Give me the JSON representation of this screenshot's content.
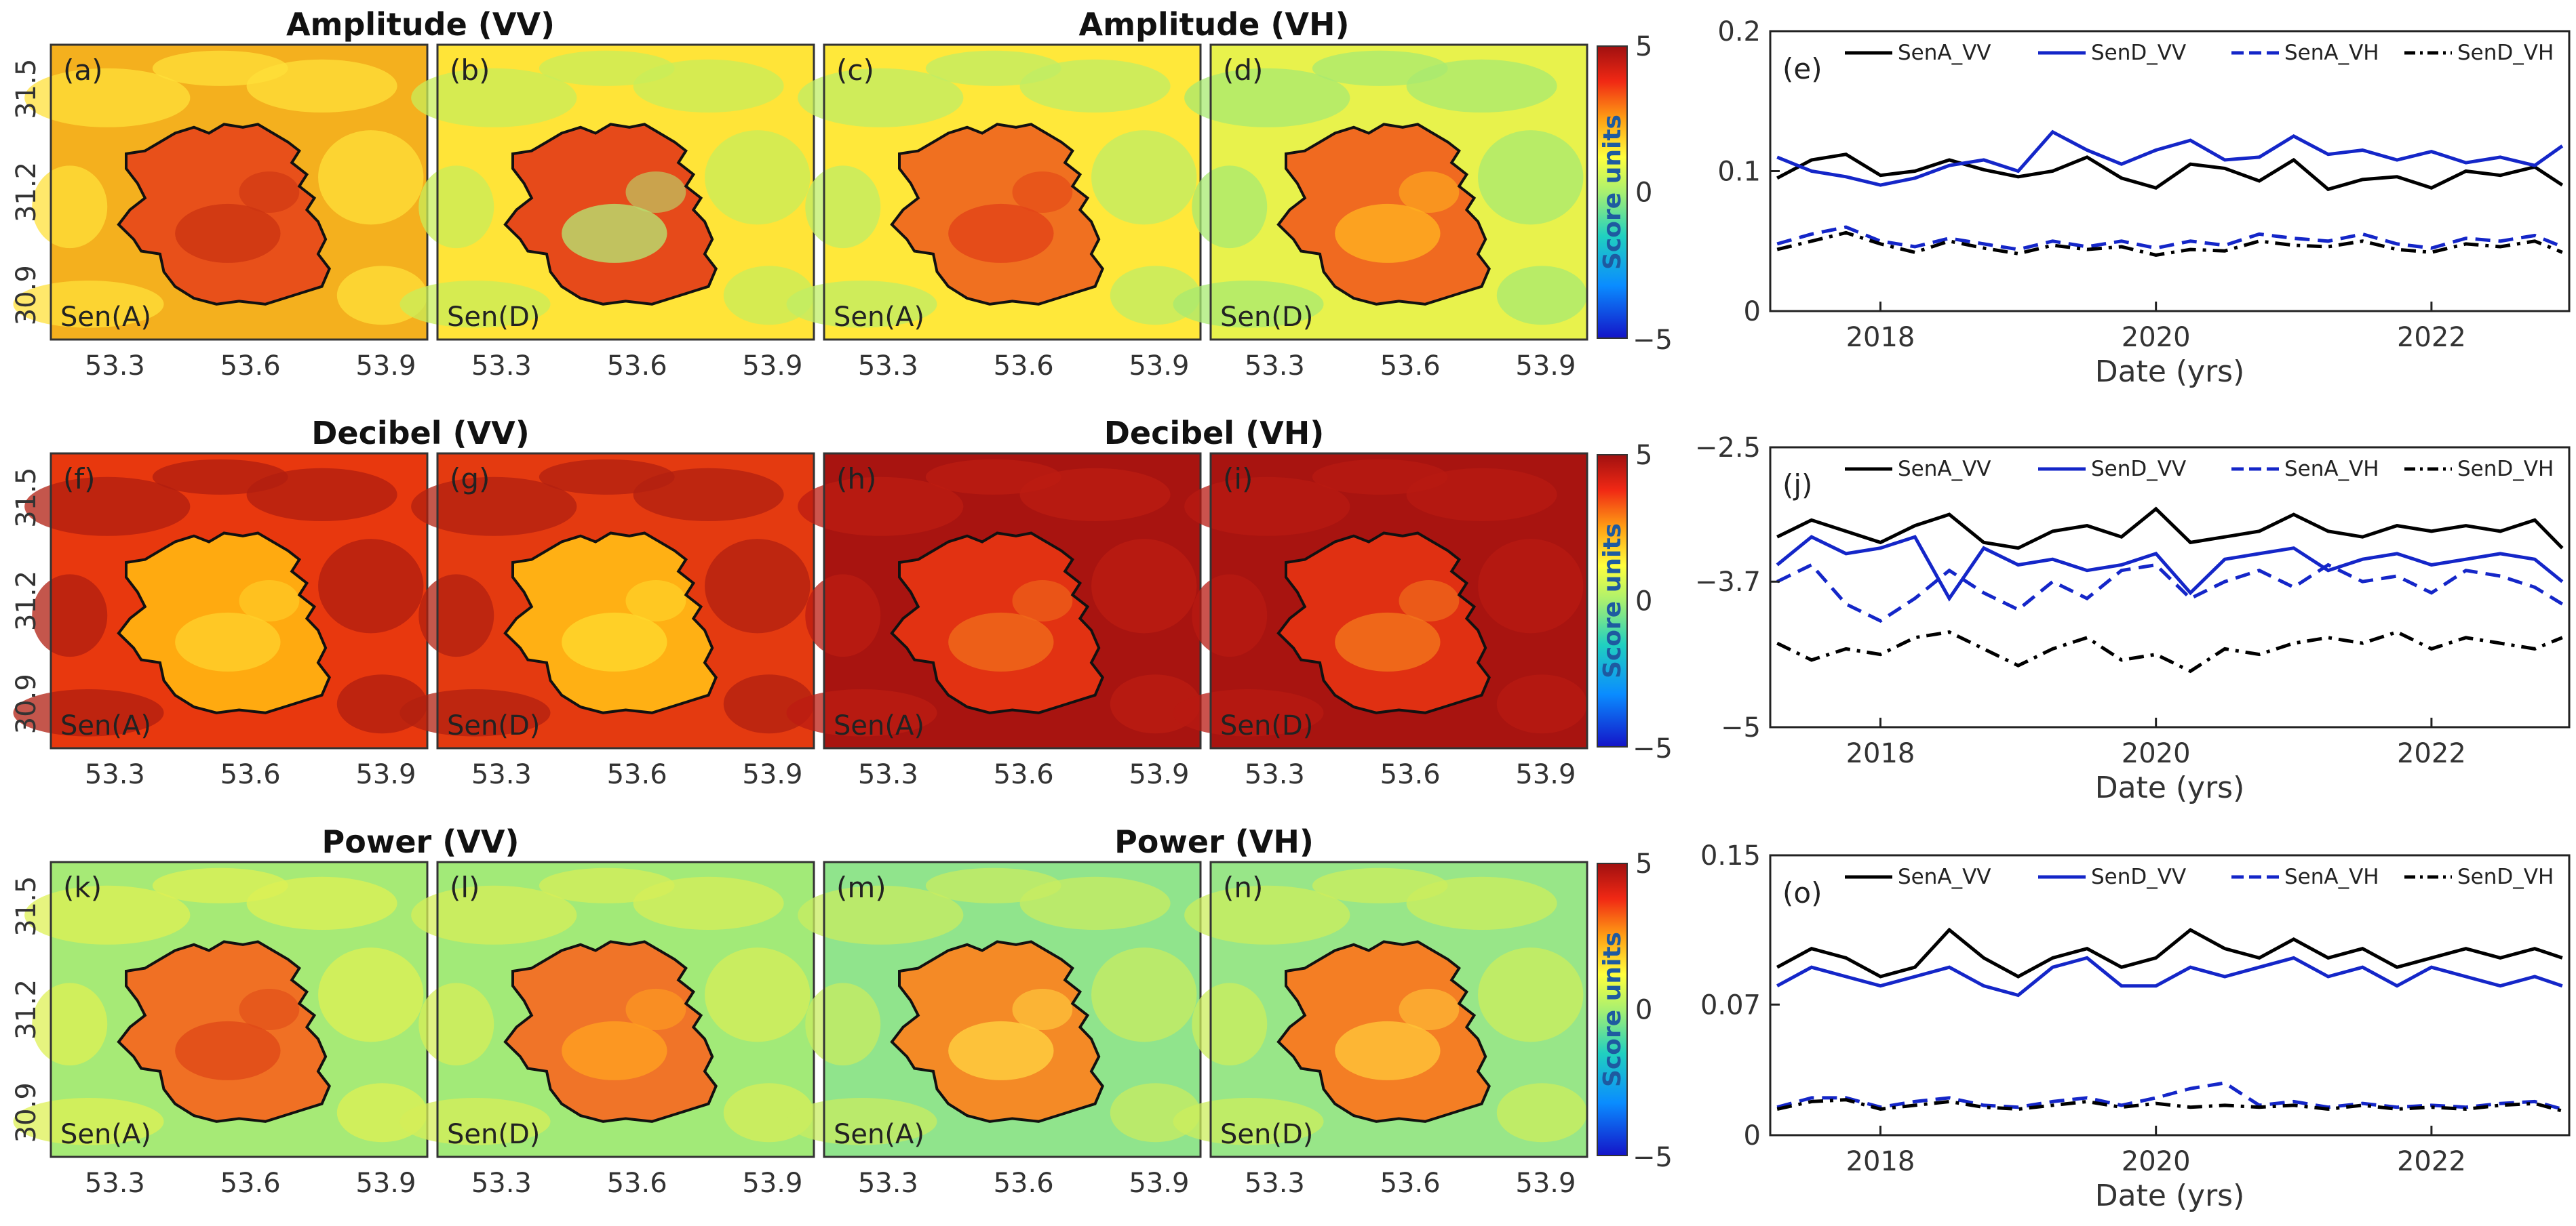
{
  "row_titles": {
    "amp_vv": "Amplitude (VV)",
    "amp_vh": "Amplitude (VH)",
    "db_vv": "Decibel (VV)",
    "db_vh": "Decibel (VH)",
    "pow_vv": "Power (VV)",
    "pow_vh": "Power (VH)"
  },
  "map_xticks": [
    "53.3",
    "53.6",
    "53.9"
  ],
  "map_yticks": [
    "31.5",
    "31.2",
    "30.9"
  ],
  "colorbar": {
    "max": "5",
    "mid": "0",
    "min": "−5",
    "label": "Score units",
    "colors": [
      "#1414c8",
      "#0a8cff",
      "#20d0c0",
      "#a8f070",
      "#ffff3c",
      "#ffa014",
      "#f02814",
      "#a01010"
    ]
  },
  "maps": [
    {
      "label": "(a)",
      "sensor": "Sen(A)",
      "bg": "#f4b01e",
      "bg2": "#ffe03a",
      "inner": "#e8501a",
      "inner2": "#cc3412"
    },
    {
      "label": "(b)",
      "sensor": "Sen(D)",
      "bg": "#ffe438",
      "bg2": "#c8ee5a",
      "inner": "#e64a1a",
      "inner2": "#b8e070"
    },
    {
      "label": "(c)",
      "sensor": "Sen(A)",
      "bg": "#ffe83a",
      "bg2": "#bfee66",
      "inner": "#f07020",
      "inner2": "#e24418"
    },
    {
      "label": "(d)",
      "sensor": "Sen(D)",
      "bg": "#e8f24c",
      "bg2": "#a8ea70",
      "inner": "#f06a20",
      "inner2": "#ffb020"
    },
    {
      "label": "(f)",
      "sensor": "Sen(A)",
      "bg": "#e8380e",
      "bg2": "#b01e10",
      "inner": "#ffaa10",
      "inner2": "#ffd02a"
    },
    {
      "label": "(g)",
      "sensor": "Sen(D)",
      "bg": "#e43a10",
      "bg2": "#b22010",
      "inner": "#ffb014",
      "inner2": "#ffd82c"
    },
    {
      "label": "(h)",
      "sensor": "Sen(A)",
      "bg": "#a81410",
      "bg2": "#bc1c12",
      "inner": "#e23212",
      "inner2": "#f06a1a"
    },
    {
      "label": "(i)",
      "sensor": "Sen(D)",
      "bg": "#a81410",
      "bg2": "#b81a12",
      "inner": "#e03012",
      "inner2": "#f2761c"
    },
    {
      "label": "(k)",
      "sensor": "Sen(A)",
      "bg": "#a6ea76",
      "bg2": "#ddf054",
      "inner": "#f07024",
      "inner2": "#e04a18"
    },
    {
      "label": "(l)",
      "sensor": "Sen(D)",
      "bg": "#a2ea78",
      "bg2": "#d6ee58",
      "inner": "#f07428",
      "inner2": "#ffa020"
    },
    {
      "label": "(m)",
      "sensor": "Sen(A)",
      "bg": "#90e48c",
      "bg2": "#c8ec60",
      "inner": "#f48a26",
      "inner2": "#ffd040"
    },
    {
      "label": "(n)",
      "sensor": "Sen(D)",
      "bg": "#98e688",
      "bg2": "#ccee5c",
      "inner": "#f47e24",
      "inner2": "#ffc438"
    }
  ],
  "ts_xlabel": "Date (yrs)",
  "ts_xticks": [
    "2018",
    "2020",
    "2022"
  ],
  "legend": {
    "a_vv": "SenA_VV",
    "d_vv": "SenD_VV",
    "a_vh": "SenA_VH",
    "d_vh": "SenD_VH"
  },
  "chart_data": [
    {
      "type": "line",
      "panel": "(e)",
      "xlabel": "Date (yrs)",
      "xlim": [
        2017.2,
        2023.0
      ],
      "yticks": [
        "0.2",
        "0.1",
        "0"
      ],
      "ylim": [
        0,
        0.2
      ],
      "series": [
        {
          "name": "SenA_VV",
          "color": "#000000",
          "style": "solid",
          "x": [
            2017.25,
            2017.5,
            2017.75,
            2018.0,
            2018.25,
            2018.5,
            2018.75,
            2019.0,
            2019.25,
            2019.5,
            2019.75,
            2020.0,
            2020.25,
            2020.5,
            2020.75,
            2021.0,
            2021.25,
            2021.5,
            2021.75,
            2022.0,
            2022.25,
            2022.5,
            2022.75,
            2022.95
          ],
          "values": [
            0.095,
            0.108,
            0.112,
            0.097,
            0.1,
            0.108,
            0.101,
            0.096,
            0.1,
            0.11,
            0.095,
            0.088,
            0.105,
            0.102,
            0.093,
            0.108,
            0.087,
            0.094,
            0.096,
            0.088,
            0.1,
            0.097,
            0.103,
            0.09
          ]
        },
        {
          "name": "SenD_VV",
          "color": "#1426c8",
          "style": "solid",
          "x": [
            2017.25,
            2017.5,
            2017.75,
            2018.0,
            2018.25,
            2018.5,
            2018.75,
            2019.0,
            2019.25,
            2019.5,
            2019.75,
            2020.0,
            2020.25,
            2020.5,
            2020.75,
            2021.0,
            2021.25,
            2021.5,
            2021.75,
            2022.0,
            2022.25,
            2022.5,
            2022.75,
            2022.95
          ],
          "values": [
            0.11,
            0.1,
            0.096,
            0.09,
            0.095,
            0.104,
            0.108,
            0.1,
            0.128,
            0.115,
            0.105,
            0.115,
            0.122,
            0.108,
            0.11,
            0.125,
            0.112,
            0.115,
            0.108,
            0.114,
            0.106,
            0.11,
            0.104,
            0.118
          ]
        },
        {
          "name": "SenA_VH",
          "color": "#1426c8",
          "style": "dashed",
          "x": [
            2017.25,
            2017.5,
            2017.75,
            2018.0,
            2018.25,
            2018.5,
            2018.75,
            2019.0,
            2019.25,
            2019.5,
            2019.75,
            2020.0,
            2020.25,
            2020.5,
            2020.75,
            2021.0,
            2021.25,
            2021.5,
            2021.75,
            2022.0,
            2022.25,
            2022.5,
            2022.75,
            2022.95
          ],
          "values": [
            0.048,
            0.055,
            0.06,
            0.05,
            0.046,
            0.052,
            0.048,
            0.044,
            0.05,
            0.046,
            0.05,
            0.045,
            0.05,
            0.047,
            0.055,
            0.052,
            0.05,
            0.055,
            0.048,
            0.045,
            0.052,
            0.05,
            0.054,
            0.046
          ]
        },
        {
          "name": "SenD_VH",
          "color": "#000000",
          "style": "dashdot",
          "x": [
            2017.25,
            2017.5,
            2017.75,
            2018.0,
            2018.25,
            2018.5,
            2018.75,
            2019.0,
            2019.25,
            2019.5,
            2019.75,
            2020.0,
            2020.25,
            2020.5,
            2020.75,
            2021.0,
            2021.25,
            2021.5,
            2021.75,
            2022.0,
            2022.25,
            2022.5,
            2022.75,
            2022.95
          ],
          "values": [
            0.044,
            0.05,
            0.056,
            0.048,
            0.042,
            0.05,
            0.045,
            0.041,
            0.047,
            0.044,
            0.046,
            0.04,
            0.044,
            0.043,
            0.05,
            0.047,
            0.046,
            0.05,
            0.044,
            0.042,
            0.048,
            0.046,
            0.05,
            0.042
          ]
        }
      ]
    },
    {
      "type": "line",
      "panel": "(j)",
      "xlabel": "Date (yrs)",
      "xlim": [
        2017.2,
        2023.0
      ],
      "yticks": [
        "−2.5",
        "−3.7",
        "−5"
      ],
      "ylim": [
        -5,
        -2.5
      ],
      "series": [
        {
          "name": "SenA_VV",
          "color": "#000000",
          "style": "solid",
          "x": [
            2017.25,
            2017.5,
            2017.75,
            2018.0,
            2018.25,
            2018.5,
            2018.75,
            2019.0,
            2019.25,
            2019.5,
            2019.75,
            2020.0,
            2020.25,
            2020.5,
            2020.75,
            2021.0,
            2021.25,
            2021.5,
            2021.75,
            2022.0,
            2022.25,
            2022.5,
            2022.75,
            2022.95
          ],
          "values": [
            -3.3,
            -3.15,
            -3.25,
            -3.35,
            -3.2,
            -3.1,
            -3.35,
            -3.4,
            -3.25,
            -3.2,
            -3.3,
            -3.05,
            -3.35,
            -3.3,
            -3.25,
            -3.1,
            -3.25,
            -3.3,
            -3.2,
            -3.25,
            -3.2,
            -3.25,
            -3.15,
            -3.4
          ]
        },
        {
          "name": "SenD_VV",
          "color": "#1426c8",
          "style": "solid",
          "x": [
            2017.25,
            2017.5,
            2017.75,
            2018.0,
            2018.25,
            2018.5,
            2018.75,
            2019.0,
            2019.25,
            2019.5,
            2019.75,
            2020.0,
            2020.25,
            2020.5,
            2020.75,
            2021.0,
            2021.25,
            2021.5,
            2021.75,
            2022.0,
            2022.25,
            2022.5,
            2022.75,
            2022.95
          ],
          "values": [
            -3.55,
            -3.3,
            -3.45,
            -3.4,
            -3.3,
            -3.85,
            -3.4,
            -3.55,
            -3.5,
            -3.6,
            -3.55,
            -3.45,
            -3.8,
            -3.5,
            -3.45,
            -3.4,
            -3.6,
            -3.5,
            -3.45,
            -3.55,
            -3.5,
            -3.45,
            -3.5,
            -3.7
          ]
        },
        {
          "name": "SenA_VH",
          "color": "#1426c8",
          "style": "dashed",
          "x": [
            2017.25,
            2017.5,
            2017.75,
            2018.0,
            2018.25,
            2018.5,
            2018.75,
            2019.0,
            2019.25,
            2019.5,
            2019.75,
            2020.0,
            2020.25,
            2020.5,
            2020.75,
            2021.0,
            2021.25,
            2021.5,
            2021.75,
            2022.0,
            2022.25,
            2022.5,
            2022.75,
            2022.95
          ],
          "values": [
            -3.7,
            -3.55,
            -3.9,
            -4.05,
            -3.85,
            -3.6,
            -3.8,
            -3.95,
            -3.7,
            -3.85,
            -3.6,
            -3.55,
            -3.85,
            -3.7,
            -3.6,
            -3.75,
            -3.55,
            -3.7,
            -3.65,
            -3.8,
            -3.6,
            -3.65,
            -3.75,
            -3.9
          ]
        },
        {
          "name": "SenD_VH",
          "color": "#000000",
          "style": "dashdot",
          "x": [
            2017.25,
            2017.5,
            2017.75,
            2018.0,
            2018.25,
            2018.5,
            2018.75,
            2019.0,
            2019.25,
            2019.5,
            2019.75,
            2020.0,
            2020.25,
            2020.5,
            2020.75,
            2021.0,
            2021.25,
            2021.5,
            2021.75,
            2022.0,
            2022.25,
            2022.5,
            2022.75,
            2022.95
          ],
          "values": [
            -4.25,
            -4.4,
            -4.3,
            -4.35,
            -4.2,
            -4.15,
            -4.3,
            -4.45,
            -4.3,
            -4.2,
            -4.4,
            -4.35,
            -4.5,
            -4.3,
            -4.35,
            -4.25,
            -4.2,
            -4.25,
            -4.15,
            -4.3,
            -4.2,
            -4.25,
            -4.3,
            -4.2
          ]
        }
      ]
    },
    {
      "type": "line",
      "panel": "(o)",
      "xlabel": "Date (yrs)",
      "xlim": [
        2017.2,
        2023.0
      ],
      "yticks": [
        "0.15",
        "0.07",
        "0"
      ],
      "ylim": [
        0,
        0.15
      ],
      "series": [
        {
          "name": "SenA_VV",
          "color": "#000000",
          "style": "solid",
          "x": [
            2017.25,
            2017.5,
            2017.75,
            2018.0,
            2018.25,
            2018.5,
            2018.75,
            2019.0,
            2019.25,
            2019.5,
            2019.75,
            2020.0,
            2020.25,
            2020.5,
            2020.75,
            2021.0,
            2021.25,
            2021.5,
            2021.75,
            2022.0,
            2022.25,
            2022.5,
            2022.75,
            2022.95
          ],
          "values": [
            0.09,
            0.1,
            0.095,
            0.085,
            0.09,
            0.11,
            0.095,
            0.085,
            0.095,
            0.1,
            0.09,
            0.095,
            0.11,
            0.1,
            0.095,
            0.105,
            0.095,
            0.1,
            0.09,
            0.095,
            0.1,
            0.095,
            0.1,
            0.095
          ]
        },
        {
          "name": "SenD_VV",
          "color": "#1426c8",
          "style": "solid",
          "x": [
            2017.25,
            2017.5,
            2017.75,
            2018.0,
            2018.25,
            2018.5,
            2018.75,
            2019.0,
            2019.25,
            2019.5,
            2019.75,
            2020.0,
            2020.25,
            2020.5,
            2020.75,
            2021.0,
            2021.25,
            2021.5,
            2021.75,
            2022.0,
            2022.25,
            2022.5,
            2022.75,
            2022.95
          ],
          "values": [
            0.08,
            0.09,
            0.085,
            0.08,
            0.085,
            0.09,
            0.08,
            0.075,
            0.09,
            0.095,
            0.08,
            0.08,
            0.09,
            0.085,
            0.09,
            0.095,
            0.085,
            0.09,
            0.08,
            0.09,
            0.085,
            0.08,
            0.085,
            0.08
          ]
        },
        {
          "name": "SenA_VH",
          "color": "#1426c8",
          "style": "dashed",
          "x": [
            2017.25,
            2017.5,
            2017.75,
            2018.0,
            2018.25,
            2018.5,
            2018.75,
            2019.0,
            2019.25,
            2019.5,
            2019.75,
            2020.0,
            2020.25,
            2020.5,
            2020.75,
            2021.0,
            2021.25,
            2021.5,
            2021.75,
            2022.0,
            2022.25,
            2022.5,
            2022.75,
            2022.95
          ],
          "values": [
            0.015,
            0.02,
            0.02,
            0.015,
            0.018,
            0.02,
            0.016,
            0.015,
            0.018,
            0.02,
            0.016,
            0.02,
            0.025,
            0.028,
            0.016,
            0.018,
            0.015,
            0.017,
            0.015,
            0.016,
            0.015,
            0.017,
            0.018,
            0.014
          ]
        },
        {
          "name": "SenD_VH",
          "color": "#000000",
          "style": "dashdot",
          "x": [
            2017.25,
            2017.5,
            2017.75,
            2018.0,
            2018.25,
            2018.5,
            2018.75,
            2019.0,
            2019.25,
            2019.5,
            2019.75,
            2020.0,
            2020.25,
            2020.5,
            2020.75,
            2021.0,
            2021.25,
            2021.5,
            2021.75,
            2022.0,
            2022.25,
            2022.5,
            2022.75,
            2022.95
          ],
          "values": [
            0.014,
            0.018,
            0.019,
            0.014,
            0.016,
            0.018,
            0.015,
            0.014,
            0.016,
            0.018,
            0.015,
            0.017,
            0.015,
            0.016,
            0.015,
            0.016,
            0.014,
            0.016,
            0.014,
            0.015,
            0.014,
            0.016,
            0.017,
            0.013
          ]
        }
      ]
    }
  ]
}
